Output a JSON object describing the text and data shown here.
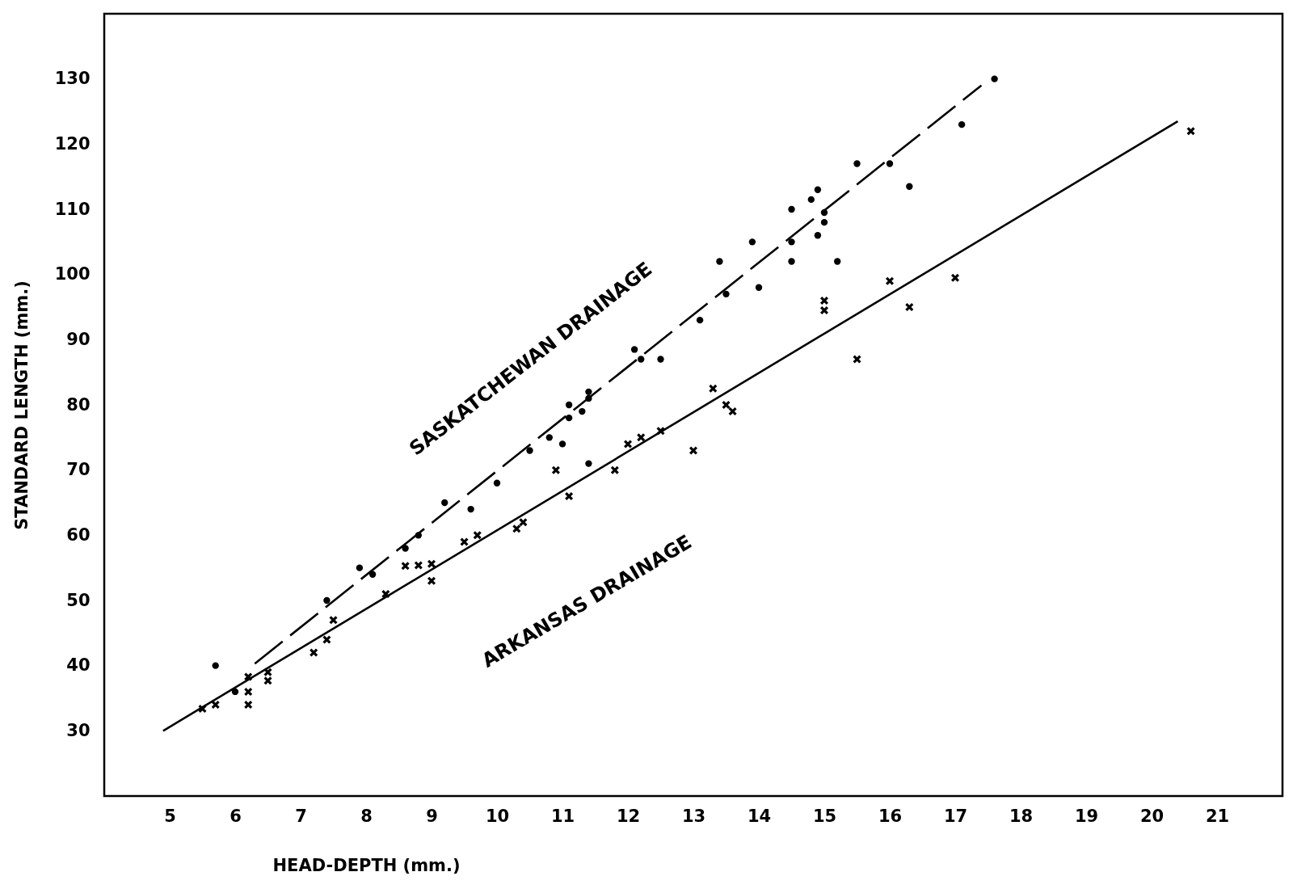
{
  "chart_data": {
    "type": "scatter",
    "xlabel": "HEAD-DEPTH (mm.)",
    "ylabel": "STANDARD LENGTH (mm.)",
    "xlim": [
      4,
      22
    ],
    "xticks": [
      5,
      6,
      7,
      8,
      9,
      10,
      11,
      12,
      13,
      14,
      15,
      16,
      17,
      18,
      19,
      20,
      21
    ],
    "ylim": [
      20,
      140
    ],
    "yticks": [
      30,
      40,
      50,
      60,
      70,
      80,
      90,
      100,
      110,
      120,
      130
    ],
    "grid": false,
    "series": [
      {
        "name": "SASKATCHEWAN DRAINAGE",
        "marker": "circle",
        "color": "#000000",
        "x": [
          5.7,
          6.0,
          7.4,
          7.9,
          8.1,
          8.6,
          8.8,
          9.2,
          9.6,
          10.0,
          10.5,
          10.8,
          11.0,
          11.1,
          11.1,
          11.3,
          11.4,
          11.4,
          11.4,
          12.1,
          12.2,
          12.5,
          13.1,
          13.4,
          13.5,
          13.9,
          14.0,
          14.5,
          14.5,
          14.5,
          14.8,
          14.9,
          14.9,
          15.0,
          15.0,
          15.2,
          15.5,
          16.0,
          16.3,
          17.1,
          17.6
        ],
        "values": [
          40,
          36,
          50,
          55,
          54,
          58,
          60,
          65,
          64,
          68,
          73,
          75,
          74,
          80,
          78,
          79,
          81,
          82,
          71,
          88.5,
          87,
          87,
          93,
          102,
          97,
          105,
          98,
          110,
          105,
          102,
          111.5,
          113,
          106,
          109.5,
          108,
          102,
          117,
          117,
          113.5,
          123,
          130
        ]
      },
      {
        "name": "ARKANSAS DRAINAGE",
        "marker": "cross",
        "color": "#000000",
        "x": [
          5.5,
          5.7,
          6.2,
          6.2,
          6.2,
          6.5,
          6.5,
          7.2,
          7.4,
          7.5,
          8.3,
          8.6,
          8.8,
          9.0,
          9.0,
          9.5,
          9.7,
          10.3,
          10.4,
          10.9,
          11.1,
          11.8,
          12.0,
          12.2,
          12.5,
          13.0,
          13.3,
          13.5,
          13.6,
          15.0,
          15.0,
          15.5,
          16.0,
          16.3,
          17.0,
          20.6
        ],
        "values": [
          33.4,
          34,
          38.3,
          36,
          34,
          39,
          37.7,
          42,
          44,
          47,
          51,
          55.3,
          55.4,
          55.6,
          53,
          59,
          60,
          61,
          62,
          70,
          66,
          70,
          74,
          75,
          76,
          73,
          82.5,
          80,
          79,
          96,
          94.5,
          87,
          99,
          95,
          99.5,
          122
        ]
      },
      {
        "type": "line",
        "line_style": "dashed",
        "marker": "none",
        "color": "#000000",
        "x": [
          6.3,
          17.4
        ],
        "values": [
          40.3,
          129
        ]
      },
      {
        "type": "line",
        "line_style": "solid",
        "marker": "none",
        "color": "#000000",
        "x": [
          4.9,
          20.4
        ],
        "values": [
          30,
          123.5
        ]
      }
    ]
  }
}
